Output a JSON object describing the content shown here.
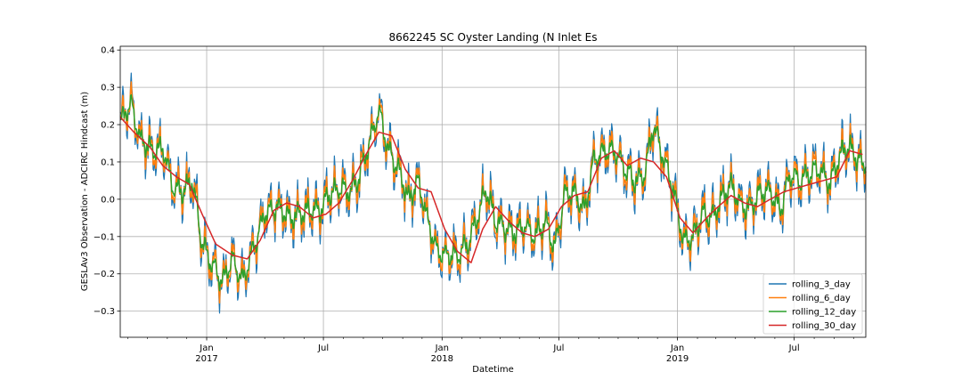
{
  "chart_data": {
    "type": "line",
    "title": "8662245 SC Oyster Landing (N Inlet Es",
    "xlabel": "Datetime",
    "ylabel": "GESLAv3 Observation - ADCIRC Hindcast (m)",
    "xlim": [
      "2016-08-20",
      "2019-10-20"
    ],
    "ylim": [
      -0.37,
      0.41
    ],
    "y_ticks": [
      -0.3,
      -0.2,
      -0.1,
      0.0,
      0.1,
      0.2,
      0.3,
      0.4
    ],
    "y_tick_labels": [
      "−0.3",
      "−0.2",
      "−0.1",
      "0.0",
      "0.1",
      "0.2",
      "0.3",
      "0.4"
    ],
    "x_ticks": [
      {
        "date": "2017-01-01",
        "label": "Jan",
        "sublabel": "2017",
        "grid": true
      },
      {
        "date": "2017-07-01",
        "label": "Jul",
        "sublabel": "",
        "grid": true
      },
      {
        "date": "2018-01-01",
        "label": "Jan",
        "sublabel": "2018",
        "grid": true
      },
      {
        "date": "2018-07-01",
        "label": "Jul",
        "sublabel": "",
        "grid": true
      },
      {
        "date": "2019-01-01",
        "label": "Jan",
        "sublabel": "2019",
        "grid": true
      },
      {
        "date": "2019-07-01",
        "label": "Jul",
        "sublabel": "",
        "grid": true
      }
    ],
    "x_minor_ticks": [
      "2016-09-01",
      "2016-10-01",
      "2016-11-01",
      "2016-12-01",
      "2017-02-01",
      "2017-03-01",
      "2017-04-01",
      "2017-05-01",
      "2017-06-01",
      "2017-08-01",
      "2017-09-01",
      "2017-10-01",
      "2017-11-01",
      "2017-12-01",
      "2018-02-01",
      "2018-03-01",
      "2018-04-01",
      "2018-05-01",
      "2018-06-01",
      "2018-08-01",
      "2018-09-01",
      "2018-10-01",
      "2018-11-01",
      "2018-12-01",
      "2019-02-01",
      "2019-03-01",
      "2019-04-01",
      "2019-05-01",
      "2019-06-01",
      "2019-08-01",
      "2019-09-01",
      "2019-10-01"
    ],
    "grid": true,
    "legend_position": "bottom-right",
    "series": [
      {
        "name": "rolling_3_day",
        "color": "#1f77b4",
        "amplitude": 1.0,
        "x": [
          "2016-08-20",
          "2016-09-05",
          "2016-09-20",
          "2016-10-10",
          "2016-10-25",
          "2016-11-10",
          "2016-11-25",
          "2016-12-10",
          "2016-12-25",
          "2017-01-08",
          "2017-01-25",
          "2017-02-10",
          "2017-02-25",
          "2017-03-15",
          "2017-04-01",
          "2017-04-20",
          "2017-05-10",
          "2017-05-25",
          "2017-06-10",
          "2017-06-25",
          "2017-07-10",
          "2017-07-25",
          "2017-08-10",
          "2017-08-25",
          "2017-09-10",
          "2017-09-25",
          "2017-10-10",
          "2017-10-25",
          "2017-11-10",
          "2017-11-25",
          "2017-12-10",
          "2017-12-25",
          "2018-01-10",
          "2018-01-25",
          "2018-02-10",
          "2018-02-25",
          "2018-03-10",
          "2018-03-25",
          "2018-04-10",
          "2018-04-25",
          "2018-05-10",
          "2018-05-25",
          "2018-06-10",
          "2018-06-25",
          "2018-07-10",
          "2018-07-25",
          "2018-08-10",
          "2018-08-25",
          "2018-09-10",
          "2018-09-25",
          "2018-10-10",
          "2018-10-25",
          "2018-11-10",
          "2018-11-25",
          "2018-12-10",
          "2018-12-25",
          "2019-01-10",
          "2019-01-25",
          "2019-02-10",
          "2019-02-25",
          "2019-03-10",
          "2019-03-25",
          "2019-04-10",
          "2019-04-25",
          "2019-05-10",
          "2019-05-25",
          "2019-06-10",
          "2019-06-25",
          "2019-07-10",
          "2019-07-25",
          "2019-08-10",
          "2019-08-25",
          "2019-09-10",
          "2019-09-25",
          "2019-10-10",
          "2019-10-20"
        ],
        "y": [
          0.2,
          0.26,
          0.16,
          0.13,
          0.14,
          0.03,
          0.02,
          0.05,
          -0.12,
          -0.17,
          -0.22,
          -0.16,
          -0.22,
          -0.13,
          -0.04,
          -0.02,
          -0.05,
          -0.04,
          -0.03,
          -0.03,
          0.01,
          0.03,
          0.02,
          0.06,
          0.15,
          0.24,
          0.13,
          0.08,
          0.0,
          0.05,
          -0.06,
          -0.14,
          -0.15,
          -0.15,
          -0.12,
          -0.05,
          0.03,
          -0.06,
          -0.08,
          -0.09,
          -0.07,
          -0.1,
          -0.06,
          -0.13,
          0.01,
          0.02,
          -0.03,
          0.11,
          0.13,
          0.13,
          0.09,
          0.05,
          0.06,
          0.2,
          0.11,
          0.03,
          -0.11,
          -0.1,
          -0.04,
          -0.05,
          0.0,
          0.04,
          -0.02,
          -0.02,
          0.02,
          0.02,
          -0.03,
          0.07,
          0.05,
          0.07,
          0.08,
          0.04,
          0.12,
          0.14,
          0.1,
          0.1
        ],
        "y_max": 0.37,
        "y_min": -0.33
      },
      {
        "name": "rolling_6_day",
        "color": "#ff7f0e",
        "amplitude": 0.72,
        "x": [
          "2016-08-20",
          "2016-09-05",
          "2016-09-20",
          "2016-10-10",
          "2016-10-25",
          "2016-11-10",
          "2016-11-25",
          "2016-12-10",
          "2016-12-25",
          "2017-01-08",
          "2017-01-25",
          "2017-02-10",
          "2017-02-25",
          "2017-03-15",
          "2017-04-01",
          "2017-04-20",
          "2017-05-10",
          "2017-05-25",
          "2017-06-10",
          "2017-06-25",
          "2017-07-10",
          "2017-07-25",
          "2017-08-10",
          "2017-08-25",
          "2017-09-10",
          "2017-09-25",
          "2017-10-10",
          "2017-10-25",
          "2017-11-10",
          "2017-11-25",
          "2017-12-10",
          "2017-12-25",
          "2018-01-10",
          "2018-01-25",
          "2018-02-10",
          "2018-02-25",
          "2018-03-10",
          "2018-03-25",
          "2018-04-10",
          "2018-04-25",
          "2018-05-10",
          "2018-05-25",
          "2018-06-10",
          "2018-06-25",
          "2018-07-10",
          "2018-07-25",
          "2018-08-10",
          "2018-08-25",
          "2018-09-10",
          "2018-09-25",
          "2018-10-10",
          "2018-10-25",
          "2018-11-10",
          "2018-11-25",
          "2018-12-10",
          "2018-12-25",
          "2019-01-10",
          "2019-01-25",
          "2019-02-10",
          "2019-02-25",
          "2019-03-10",
          "2019-03-25",
          "2019-04-10",
          "2019-04-25",
          "2019-05-10",
          "2019-05-25",
          "2019-06-10",
          "2019-06-25",
          "2019-07-10",
          "2019-07-25",
          "2019-08-10",
          "2019-08-25",
          "2019-09-10",
          "2019-09-25",
          "2019-10-10",
          "2019-10-20"
        ],
        "y": [
          0.2,
          0.26,
          0.16,
          0.13,
          0.14,
          0.03,
          0.02,
          0.05,
          -0.12,
          -0.17,
          -0.22,
          -0.16,
          -0.22,
          -0.13,
          -0.04,
          -0.02,
          -0.05,
          -0.04,
          -0.03,
          -0.03,
          0.01,
          0.03,
          0.02,
          0.06,
          0.15,
          0.24,
          0.13,
          0.08,
          0.0,
          0.05,
          -0.06,
          -0.14,
          -0.15,
          -0.15,
          -0.12,
          -0.05,
          0.03,
          -0.06,
          -0.08,
          -0.09,
          -0.07,
          -0.1,
          -0.06,
          -0.13,
          0.01,
          0.02,
          -0.03,
          0.11,
          0.13,
          0.13,
          0.09,
          0.05,
          0.06,
          0.2,
          0.11,
          0.03,
          -0.11,
          -0.1,
          -0.04,
          -0.05,
          0.0,
          0.04,
          -0.02,
          -0.02,
          0.02,
          0.02,
          -0.03,
          0.07,
          0.05,
          0.07,
          0.08,
          0.04,
          0.12,
          0.14,
          0.1,
          0.1
        ],
        "y_max": 0.33,
        "y_min": -0.31
      },
      {
        "name": "rolling_12_day",
        "color": "#2ca02c",
        "amplitude": 0.38,
        "x": [
          "2016-08-20",
          "2016-09-05",
          "2016-09-20",
          "2016-10-10",
          "2016-10-25",
          "2016-11-10",
          "2016-11-25",
          "2016-12-10",
          "2016-12-25",
          "2017-01-08",
          "2017-01-25",
          "2017-02-10",
          "2017-02-25",
          "2017-03-15",
          "2017-04-01",
          "2017-04-20",
          "2017-05-10",
          "2017-05-25",
          "2017-06-10",
          "2017-06-25",
          "2017-07-10",
          "2017-07-25",
          "2017-08-10",
          "2017-08-25",
          "2017-09-10",
          "2017-09-25",
          "2017-10-10",
          "2017-10-25",
          "2017-11-10",
          "2017-11-25",
          "2017-12-10",
          "2017-12-25",
          "2018-01-10",
          "2018-01-25",
          "2018-02-10",
          "2018-02-25",
          "2018-03-10",
          "2018-03-25",
          "2018-04-10",
          "2018-04-25",
          "2018-05-10",
          "2018-05-25",
          "2018-06-10",
          "2018-06-25",
          "2018-07-10",
          "2018-07-25",
          "2018-08-10",
          "2018-08-25",
          "2018-09-10",
          "2018-09-25",
          "2018-10-10",
          "2018-10-25",
          "2018-11-10",
          "2018-11-25",
          "2018-12-10",
          "2018-12-25",
          "2019-01-10",
          "2019-01-25",
          "2019-02-10",
          "2019-02-25",
          "2019-03-10",
          "2019-03-25",
          "2019-04-10",
          "2019-04-25",
          "2019-05-10",
          "2019-05-25",
          "2019-06-10",
          "2019-06-25",
          "2019-07-10",
          "2019-07-25",
          "2019-08-10",
          "2019-08-25",
          "2019-09-10",
          "2019-09-25",
          "2019-10-10",
          "2019-10-20"
        ],
        "y": [
          0.2,
          0.26,
          0.16,
          0.13,
          0.14,
          0.03,
          0.02,
          0.05,
          -0.12,
          -0.17,
          -0.22,
          -0.16,
          -0.22,
          -0.13,
          -0.04,
          -0.02,
          -0.05,
          -0.04,
          -0.03,
          -0.03,
          0.01,
          0.03,
          0.02,
          0.06,
          0.15,
          0.24,
          0.13,
          0.08,
          0.0,
          0.05,
          -0.06,
          -0.14,
          -0.15,
          -0.15,
          -0.12,
          -0.05,
          0.03,
          -0.06,
          -0.08,
          -0.09,
          -0.07,
          -0.1,
          -0.06,
          -0.13,
          0.01,
          0.02,
          -0.03,
          0.11,
          0.13,
          0.13,
          0.09,
          0.05,
          0.06,
          0.2,
          0.11,
          0.03,
          -0.11,
          -0.1,
          -0.04,
          -0.05,
          0.0,
          0.04,
          -0.02,
          -0.02,
          0.02,
          0.02,
          -0.03,
          0.07,
          0.05,
          0.07,
          0.08,
          0.04,
          0.12,
          0.14,
          0.1,
          0.1
        ],
        "y_max": 0.28,
        "y_min": -0.25
      },
      {
        "name": "rolling_30_day",
        "color": "#d62728",
        "x": [
          "2016-08-20",
          "2016-09-10",
          "2016-10-05",
          "2016-10-25",
          "2016-11-15",
          "2016-12-05",
          "2016-12-25",
          "2017-01-15",
          "2017-02-10",
          "2017-03-05",
          "2017-03-25",
          "2017-04-15",
          "2017-05-05",
          "2017-05-25",
          "2017-06-15",
          "2017-07-05",
          "2017-07-25",
          "2017-08-15",
          "2017-09-05",
          "2017-09-25",
          "2017-10-15",
          "2017-11-05",
          "2017-11-25",
          "2017-12-15",
          "2018-01-05",
          "2018-01-25",
          "2018-02-15",
          "2018-03-05",
          "2018-03-25",
          "2018-04-15",
          "2018-05-05",
          "2018-05-25",
          "2018-06-15",
          "2018-07-05",
          "2018-07-25",
          "2018-08-15",
          "2018-09-05",
          "2018-09-25",
          "2018-10-15",
          "2018-11-05",
          "2018-11-25",
          "2018-12-15",
          "2019-01-05",
          "2019-01-25",
          "2019-02-15",
          "2019-03-05",
          "2019-03-25",
          "2019-04-15",
          "2019-05-05",
          "2019-05-25",
          "2019-06-15",
          "2019-07-05",
          "2019-07-25",
          "2019-08-15",
          "2019-09-05",
          "2019-09-25",
          "2019-10-15"
        ],
        "y": [
          0.22,
          0.18,
          0.14,
          0.09,
          0.06,
          0.04,
          -0.04,
          -0.12,
          -0.15,
          -0.16,
          -0.11,
          -0.03,
          -0.01,
          -0.02,
          -0.05,
          -0.04,
          -0.01,
          0.05,
          0.12,
          0.18,
          0.17,
          0.08,
          0.03,
          0.02,
          -0.08,
          -0.14,
          -0.17,
          -0.08,
          -0.02,
          -0.06,
          -0.09,
          -0.1,
          -0.08,
          -0.02,
          0.01,
          0.02,
          0.11,
          0.13,
          0.09,
          0.11,
          0.1,
          0.06,
          -0.05,
          -0.09,
          -0.05,
          -0.02,
          0.01,
          -0.01,
          -0.02,
          0.0,
          0.02,
          0.03,
          0.04,
          0.05,
          0.06,
          0.13,
          0.12
        ]
      }
    ]
  }
}
